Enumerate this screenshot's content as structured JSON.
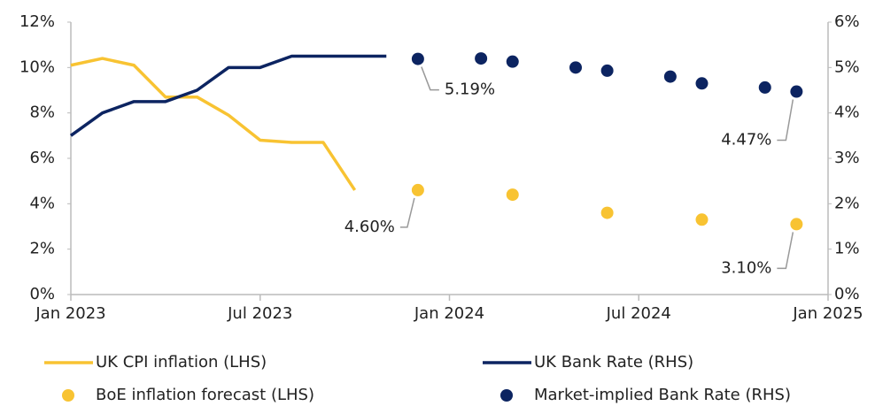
{
  "chart_data": {
    "type": "line",
    "xlim": [
      "2023-01",
      "2025-01"
    ],
    "xticks": [
      {
        "value": "2023-01",
        "label": "Jan 2023"
      },
      {
        "value": "2023-07",
        "label": "Jul 2023"
      },
      {
        "value": "2024-01",
        "label": "Jan 2024"
      },
      {
        "value": "2024-07",
        "label": "Jul 2024"
      },
      {
        "value": "2025-01",
        "label": "Jan 2025"
      }
    ],
    "ylim": [
      0,
      12
    ],
    "yticks": [
      {
        "value": 0,
        "label": "0%"
      },
      {
        "value": 2,
        "label": "2%"
      },
      {
        "value": 4,
        "label": "4%"
      },
      {
        "value": 6,
        "label": "6%"
      },
      {
        "value": 8,
        "label": "8%"
      },
      {
        "value": 10,
        "label": "10%"
      },
      {
        "value": 12,
        "label": "12%"
      }
    ],
    "y2lim": [
      0,
      6
    ],
    "y2ticks": [
      {
        "value": 0,
        "label": "0%"
      },
      {
        "value": 1,
        "label": "1%"
      },
      {
        "value": 2,
        "label": "2%"
      },
      {
        "value": 3,
        "label": "3%"
      },
      {
        "value": 4,
        "label": "4%"
      },
      {
        "value": 5,
        "label": "5%"
      },
      {
        "value": 6,
        "label": "6%"
      }
    ],
    "grid": false,
    "legend": "bottom",
    "series": [
      {
        "name": "UK CPI inflation (LHS)",
        "type": "line",
        "color": "#f8c332",
        "x": [
          "2023-01",
          "2023-02",
          "2023-03",
          "2023-04",
          "2023-05",
          "2023-06",
          "2023-07",
          "2023-08",
          "2023-09",
          "2023-10"
        ],
        "values": [
          10.1,
          10.4,
          10.1,
          8.7,
          8.7,
          7.9,
          6.8,
          6.7,
          6.7,
          4.6
        ]
      },
      {
        "name": "UK Bank Rate (RHS)",
        "type": "line",
        "color": "#0c2461",
        "axis": "y2",
        "x": [
          "2023-01",
          "2023-02",
          "2023-03",
          "2023-04",
          "2023-05",
          "2023-06",
          "2023-07",
          "2023-08",
          "2023-09",
          "2023-10",
          "2023-11"
        ],
        "values": [
          3.5,
          4.0,
          4.25,
          4.25,
          4.5,
          5.0,
          5.0,
          5.25,
          5.25,
          5.25,
          5.25
        ]
      },
      {
        "name": "BoE inflation forecast (LHS)",
        "type": "scatter",
        "color": "#f8c332",
        "x": [
          "2023-12",
          "2024-03",
          "2024-06",
          "2024-09",
          "2024-12"
        ],
        "values": [
          4.6,
          4.4,
          3.6,
          3.3,
          3.1
        ],
        "value_labels": [
          "4.60%",
          null,
          null,
          null,
          "3.10%"
        ]
      },
      {
        "name": "Market-implied Bank Rate (RHS)",
        "type": "scatter",
        "color": "#0c2461",
        "axis": "y2",
        "x": [
          "2023-12",
          "2024-02",
          "2024-03",
          "2024-05",
          "2024-06",
          "2024-08",
          "2024-09",
          "2024-11",
          "2024-12"
        ],
        "values": [
          5.19,
          5.2,
          5.13,
          5.0,
          4.93,
          4.8,
          4.65,
          4.56,
          4.47
        ],
        "value_labels": [
          "5.19%",
          null,
          null,
          null,
          null,
          null,
          null,
          null,
          "4.47%"
        ]
      }
    ]
  }
}
